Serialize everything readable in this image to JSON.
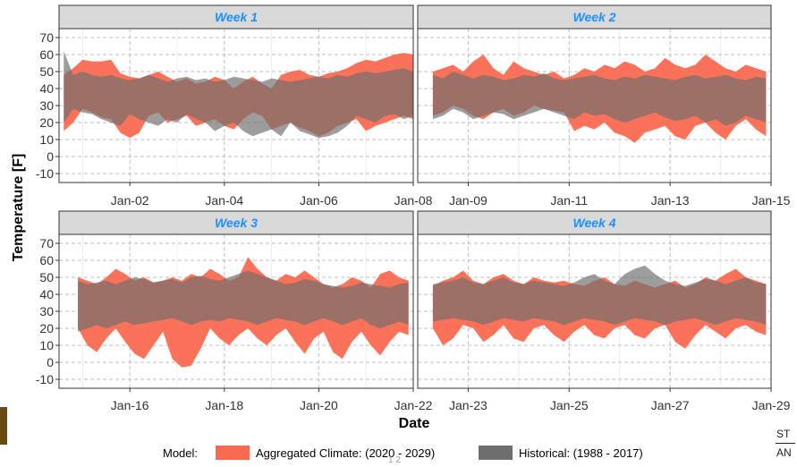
{
  "chart_data": {
    "type": "area",
    "ylabel": "Temperature [F]",
    "xlabel": "Date",
    "ylim": [
      -10,
      70
    ],
    "yticks": [
      -10,
      0,
      10,
      20,
      30,
      40,
      50,
      60,
      70
    ],
    "grid": true,
    "legend_position": "bottom",
    "legend": {
      "title": "Model:",
      "items": [
        {
          "name": "Aggregated Climate: (2020 - 2029)",
          "color": "#fa6a50"
        },
        {
          "name": "Historical: (1988 - 2017)",
          "color": "#6e6e6e"
        }
      ]
    },
    "panels": [
      {
        "title": "Week 1",
        "xrange": [
          0.5,
          8.0
        ],
        "xticks": [
          {
            "x": 2,
            "label": "Jan-02"
          },
          {
            "x": 4,
            "label": "Jan-04"
          },
          {
            "x": 6,
            "label": "Jan-06"
          },
          {
            "x": 8,
            "label": "Jan-08"
          }
        ],
        "series": [
          {
            "name": "Aggregated Climate: (2020 - 2029)",
            "x": [
              0.6,
              0.8,
              1.0,
              1.2,
              1.4,
              1.6,
              1.8,
              2.0,
              2.2,
              2.4,
              2.6,
              2.8,
              3.0,
              3.2,
              3.4,
              3.6,
              3.8,
              4.0,
              4.2,
              4.4,
              4.6,
              4.8,
              5.0,
              5.2,
              5.4,
              5.6,
              5.8,
              6.0,
              6.2,
              6.4,
              6.6,
              6.8,
              7.0,
              7.2,
              7.4,
              7.6,
              7.8,
              8.0
            ],
            "upper": [
              48,
              52,
              57,
              56,
              56,
              57,
              49,
              47,
              46,
              48,
              50,
              47,
              44,
              46,
              43,
              44,
              47,
              45,
              40,
              44,
              47,
              43,
              40,
              48,
              50,
              51,
              48,
              47,
              49,
              50,
              52,
              55,
              57,
              56,
              58,
              60,
              61,
              60
            ],
            "lower": [
              15,
              20,
              28,
              26,
              23,
              22,
              14,
              11,
              14,
              24,
              26,
              20,
              22,
              24,
              18,
              20,
              22,
              18,
              16,
              22,
              26,
              24,
              16,
              18,
              20,
              17,
              15,
              12,
              14,
              18,
              20,
              22,
              15,
              18,
              20,
              22,
              24,
              22
            ]
          },
          {
            "name": "Historical: (1988 - 2017)",
            "x": [
              0.6,
              0.8,
              1.0,
              1.2,
              1.4,
              1.6,
              1.8,
              2.0,
              2.2,
              2.4,
              2.6,
              2.8,
              3.0,
              3.2,
              3.4,
              3.6,
              3.8,
              4.0,
              4.2,
              4.4,
              4.6,
              4.8,
              5.0,
              5.2,
              5.4,
              5.6,
              5.8,
              6.0,
              6.2,
              6.4,
              6.6,
              6.8,
              7.0,
              7.2,
              7.4,
              7.6,
              7.8,
              8.0
            ],
            "upper": [
              62,
              48,
              50,
              48,
              47,
              48,
              46,
              45,
              46,
              48,
              46,
              44,
              46,
              47,
              45,
              46,
              44,
              45,
              47,
              46,
              45,
              44,
              46,
              45,
              44,
              45,
              46,
              47,
              46,
              48,
              47,
              49,
              50,
              49,
              50,
              51,
              52,
              50
            ],
            "lower": [
              20,
              28,
              26,
              25,
              22,
              20,
              18,
              25,
              22,
              20,
              18,
              22,
              20,
              25,
              22,
              20,
              15,
              18,
              20,
              15,
              12,
              14,
              16,
              12,
              20,
              15,
              13,
              11,
              12,
              14,
              18,
              24,
              22,
              20,
              24,
              25,
              22,
              24
            ]
          }
        ]
      },
      {
        "title": "Week 2",
        "xrange": [
          8.0,
          15.0
        ],
        "xticks": [
          {
            "x": 9,
            "label": "Jan-09"
          },
          {
            "x": 11,
            "label": "Jan-11"
          },
          {
            "x": 13,
            "label": "Jan-13"
          },
          {
            "x": 15,
            "label": "Jan-15"
          }
        ],
        "series": [
          {
            "name": "Aggregated Climate: (2020 - 2029)",
            "x": [
              8.3,
              8.5,
              8.7,
              8.9,
              9.1,
              9.3,
              9.5,
              9.7,
              9.9,
              10.1,
              10.3,
              10.5,
              10.7,
              10.9,
              11.1,
              11.3,
              11.5,
              11.7,
              11.9,
              12.1,
              12.3,
              12.5,
              12.7,
              12.9,
              13.1,
              13.3,
              13.5,
              13.7,
              13.9,
              14.1,
              14.3,
              14.5,
              14.7,
              14.9
            ],
            "upper": [
              50,
              52,
              54,
              50,
              56,
              60,
              52,
              48,
              56,
              52,
              50,
              48,
              50,
              46,
              48,
              52,
              50,
              54,
              52,
              56,
              54,
              50,
              52,
              58,
              54,
              52,
              54,
              60,
              56,
              52,
              50,
              54,
              52,
              50
            ],
            "lower": [
              24,
              26,
              30,
              28,
              24,
              22,
              26,
              28,
              24,
              26,
              30,
              28,
              27,
              26,
              15,
              18,
              16,
              20,
              14,
              12,
              8,
              14,
              16,
              18,
              12,
              10,
              18,
              20,
              14,
              10,
              18,
              22,
              16,
              12
            ]
          },
          {
            "name": "Historical: (1988 - 2017)",
            "x": [
              8.3,
              8.5,
              8.7,
              8.9,
              9.1,
              9.3,
              9.5,
              9.7,
              9.9,
              10.1,
              10.3,
              10.5,
              10.7,
              10.9,
              11.1,
              11.3,
              11.5,
              11.7,
              11.9,
              12.1,
              12.3,
              12.5,
              12.7,
              12.9,
              13.1,
              13.3,
              13.5,
              13.7,
              13.9,
              14.1,
              14.3,
              14.5,
              14.7,
              14.9
            ],
            "upper": [
              48,
              46,
              50,
              48,
              46,
              48,
              47,
              45,
              46,
              48,
              47,
              49,
              46,
              45,
              46,
              47,
              48,
              46,
              45,
              47,
              46,
              48,
              47,
              46,
              45,
              47,
              48,
              46,
              47,
              48,
              46,
              45,
              47,
              46
            ],
            "lower": [
              22,
              24,
              28,
              26,
              22,
              24,
              26,
              25,
              22,
              24,
              26,
              28,
              26,
              24,
              22,
              26,
              24,
              25,
              22,
              20,
              22,
              24,
              26,
              23,
              21,
              22,
              24,
              20,
              22,
              18,
              20,
              24,
              22,
              20
            ]
          }
        ]
      },
      {
        "title": "Week 3",
        "xrange": [
          14.5,
          22.0
        ],
        "xticks": [
          {
            "x": 16,
            "label": "Jan-16"
          },
          {
            "x": 18,
            "label": "Jan-18"
          },
          {
            "x": 20,
            "label": "Jan-20"
          },
          {
            "x": 22,
            "label": "Jan-22"
          }
        ],
        "series": [
          {
            "name": "Aggregated Climate: (2020 - 2029)",
            "x": [
              14.9,
              15.1,
              15.3,
              15.5,
              15.7,
              15.9,
              16.1,
              16.3,
              16.5,
              16.7,
              16.9,
              17.1,
              17.3,
              17.5,
              17.7,
              17.9,
              18.1,
              18.3,
              18.5,
              18.7,
              18.9,
              19.1,
              19.3,
              19.5,
              19.7,
              19.9,
              20.1,
              20.3,
              20.5,
              20.7,
              20.9,
              21.1,
              21.3,
              21.5,
              21.7,
              21.9
            ],
            "upper": [
              50,
              48,
              46,
              50,
              55,
              52,
              48,
              50,
              47,
              48,
              50,
              48,
              52,
              50,
              55,
              52,
              48,
              50,
              62,
              55,
              50,
              48,
              52,
              50,
              54,
              50,
              46,
              44,
              46,
              50,
              48,
              44,
              52,
              54,
              50,
              48
            ],
            "lower": [
              20,
              10,
              6,
              14,
              20,
              12,
              5,
              2,
              10,
              18,
              2,
              -3,
              -2,
              8,
              20,
              14,
              10,
              16,
              20,
              14,
              10,
              16,
              20,
              12,
              5,
              14,
              18,
              6,
              2,
              12,
              18,
              10,
              4,
              12,
              18,
              16
            ]
          },
          {
            "name": "Historical: (1988 - 2017)",
            "x": [
              14.9,
              15.1,
              15.3,
              15.5,
              15.7,
              15.9,
              16.1,
              16.3,
              16.5,
              16.7,
              16.9,
              17.1,
              17.3,
              17.5,
              17.7,
              17.9,
              18.1,
              18.3,
              18.5,
              18.7,
              18.9,
              19.1,
              19.3,
              19.5,
              19.7,
              19.9,
              20.1,
              20.3,
              20.5,
              20.7,
              20.9,
              21.1,
              21.3,
              21.5,
              21.7,
              21.9
            ],
            "upper": [
              48,
              46,
              47,
              48,
              46,
              48,
              50,
              49,
              47,
              48,
              49,
              47,
              50,
              51,
              49,
              48,
              50,
              52,
              54,
              52,
              50,
              48,
              46,
              47,
              49,
              48,
              46,
              45,
              44,
              45,
              47,
              46,
              45,
              44,
              46,
              47
            ],
            "lower": [
              18,
              20,
              22,
              20,
              22,
              24,
              22,
              23,
              24,
              25,
              26,
              24,
              22,
              24,
              25,
              24,
              26,
              25,
              24,
              22,
              24,
              26,
              25,
              24,
              22,
              24,
              26,
              24,
              22,
              24,
              26,
              22,
              20,
              22,
              24,
              22
            ]
          }
        ]
      },
      {
        "title": "Week 4",
        "xrange": [
          22.0,
          29.0
        ],
        "xticks": [
          {
            "x": 23,
            "label": "Jan-23"
          },
          {
            "x": 25,
            "label": "Jan-25"
          },
          {
            "x": 27,
            "label": "Jan-27"
          },
          {
            "x": 29,
            "label": "Jan-29"
          }
        ],
        "series": [
          {
            "name": "Aggregated Climate: (2020 - 2029)",
            "x": [
              22.3,
              22.5,
              22.7,
              22.9,
              23.1,
              23.3,
              23.5,
              23.7,
              23.9,
              24.1,
              24.3,
              24.5,
              24.7,
              24.9,
              25.1,
              25.3,
              25.5,
              25.7,
              25.9,
              26.1,
              26.3,
              26.5,
              26.7,
              26.9,
              27.1,
              27.3,
              27.5,
              27.7,
              27.9,
              28.1,
              28.3,
              28.5,
              28.7,
              28.9
            ],
            "upper": [
              45,
              48,
              50,
              54,
              48,
              46,
              50,
              52,
              48,
              46,
              50,
              48,
              47,
              48,
              46,
              45,
              48,
              50,
              46,
              45,
              48,
              46,
              44,
              46,
              48,
              44,
              46,
              50,
              48,
              52,
              55,
              50,
              48,
              46
            ],
            "lower": [
              20,
              10,
              14,
              22,
              20,
              12,
              16,
              22,
              14,
              12,
              20,
              22,
              16,
              12,
              18,
              22,
              16,
              14,
              20,
              22,
              16,
              14,
              20,
              22,
              12,
              8,
              16,
              22,
              18,
              14,
              20,
              22,
              18,
              16
            ]
          },
          {
            "name": "Historical: (1988 - 2017)",
            "x": [
              22.3,
              22.5,
              22.7,
              22.9,
              23.1,
              23.3,
              23.5,
              23.7,
              23.9,
              24.1,
              24.3,
              24.5,
              24.7,
              24.9,
              25.1,
              25.3,
              25.5,
              25.7,
              25.9,
              26.1,
              26.3,
              26.5,
              26.7,
              26.9,
              27.1,
              27.3,
              27.5,
              27.7,
              27.9,
              28.1,
              28.3,
              28.5,
              28.7,
              28.9
            ],
            "upper": [
              46,
              47,
              48,
              50,
              47,
              46,
              48,
              50,
              47,
              46,
              48,
              47,
              46,
              45,
              47,
              50,
              52,
              48,
              46,
              52,
              55,
              57,
              52,
              48,
              46,
              45,
              47,
              49,
              48,
              46,
              48,
              50,
              47,
              46
            ],
            "lower": [
              24,
              25,
              26,
              25,
              24,
              22,
              24,
              26,
              25,
              24,
              26,
              25,
              24,
              22,
              24,
              26,
              25,
              24,
              22,
              24,
              26,
              25,
              24,
              22,
              24,
              25,
              26,
              24,
              22,
              24,
              26,
              25,
              24,
              22
            ]
          }
        ]
      }
    ]
  },
  "edge_text": {
    "right_top": "ST",
    "right_bottom": "AN",
    "bottom_center": "1 2"
  }
}
